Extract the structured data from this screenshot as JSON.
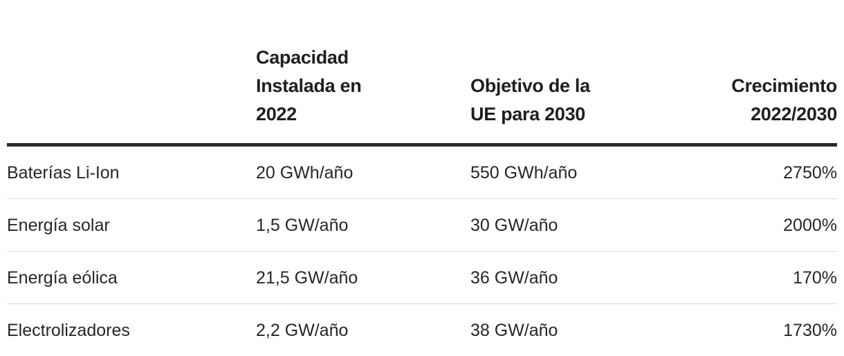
{
  "table": {
    "headers": [
      "",
      "Capacidad Instalada en 2022",
      "Objetivo de la UE para 2030",
      "Crecimiento 2022/2030"
    ],
    "rows": [
      [
        "Baterías Li-Ion",
        "20 GWh/año",
        "550 GWh/año",
        "2750%"
      ],
      [
        "Energía solar",
        "1,5 GW/año",
        "30 GW/año",
        "2000%"
      ],
      [
        "Energía eólica",
        "21,5 GW/año",
        "36 GW/año",
        "170%"
      ],
      [
        "Electrolizadores",
        "2,2 GW/año",
        "38 GW/año",
        "1730%"
      ]
    ]
  },
  "colors": {
    "text": "#222222",
    "header_rule": "#2a2a2a",
    "row_rule": "#d9d9d9",
    "background": "#ffffff"
  }
}
